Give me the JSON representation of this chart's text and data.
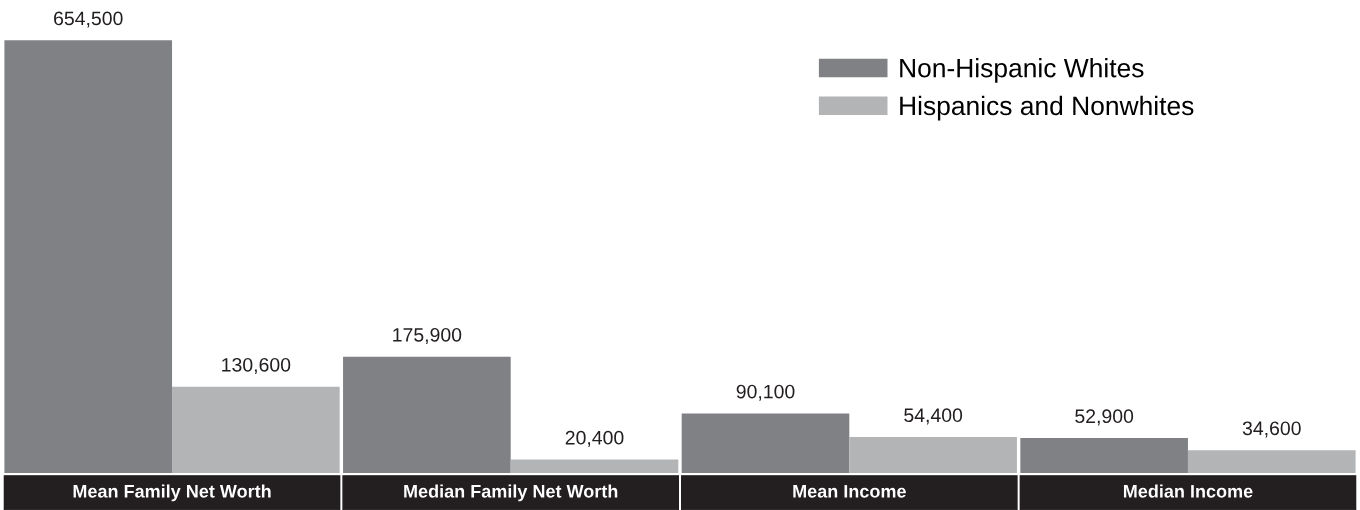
{
  "chart_data": {
    "type": "bar",
    "categories": [
      "Mean Family Net Worth",
      "Median Family Net Worth",
      "Mean Income",
      "Median Income"
    ],
    "series": [
      {
        "name": "Non-Hispanic Whites",
        "color": "#808184",
        "values": [
          654500,
          175900,
          90100,
          52900
        ],
        "value_labels": [
          "654,500",
          "175,900",
          "90,100",
          "52,900"
        ]
      },
      {
        "name": "Hispanics and Nonwhites",
        "color": "#b3b4b6",
        "values": [
          130600,
          20400,
          54400,
          34600
        ],
        "value_labels": [
          "130,600",
          "20,400",
          "54,400",
          "34,600"
        ]
      }
    ],
    "legend": "top right"
  }
}
